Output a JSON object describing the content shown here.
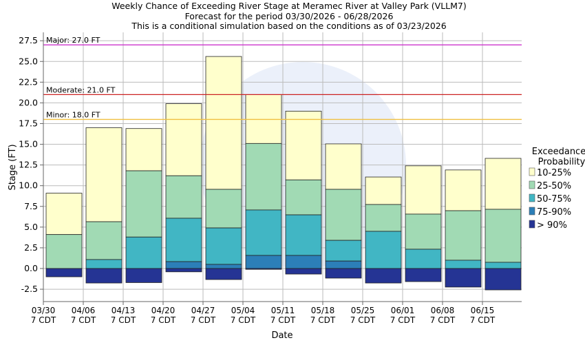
{
  "chart_data": {
    "type": "bar",
    "title": [
      "Weekly Chance of Exceeding River Stage at Meramec River at Valley Park (VLLM7)",
      "Forecast for the period 03/30/2026 - 06/28/2026",
      "This is a conditional simulation based on the conditions as of 03/23/2026"
    ],
    "xlabel": "Date",
    "ylabel": "Stage (FT)",
    "ylim": [
      -3.5,
      28.5
    ],
    "yticks": [
      "-2.5",
      "0.0",
      "2.5",
      "5.0",
      "7.5",
      "10.0",
      "12.5",
      "15.0",
      "17.5",
      "20.0",
      "22.5",
      "25.0",
      "27.5"
    ],
    "xticks": [
      [
        "03/30",
        "7 CDT"
      ],
      [
        "04/06",
        "7 CDT"
      ],
      [
        "04/13",
        "7 CDT"
      ],
      [
        "04/20",
        "7 CDT"
      ],
      [
        "04/27",
        "7 CDT"
      ],
      [
        "05/04",
        "7 CDT"
      ],
      [
        "05/11",
        "7 CDT"
      ],
      [
        "05/18",
        "7 CDT"
      ],
      [
        "05/25",
        "7 CDT"
      ],
      [
        "06/01",
        "7 CDT"
      ],
      [
        "06/08",
        "7 CDT"
      ],
      [
        "06/15",
        "7 CDT"
      ]
    ],
    "grid": true,
    "thresholds": [
      {
        "label": "Major: 27.0 FT",
        "value": 27.0,
        "color": "#cc33cc"
      },
      {
        "label": "Moderate: 21.0 FT",
        "value": 21.0,
        "color": "#cc2222"
      },
      {
        "label": "Minor: 18.0 FT",
        "value": 18.0,
        "color": "#f0c040"
      }
    ],
    "legend": {
      "title": [
        "Exceedance",
        "Probability"
      ],
      "placement": "right"
    },
    "series": [
      {
        "name": "10-25%",
        "color": "#ffffcc",
        "values": [
          [
            4.1,
            9.1
          ],
          [
            5.65,
            17.0
          ],
          [
            11.8,
            16.9
          ],
          [
            11.2,
            19.9
          ],
          [
            9.56,
            25.6
          ],
          [
            15.1,
            21.0
          ],
          [
            10.7,
            19.0
          ],
          [
            9.56,
            15.05
          ],
          [
            7.73,
            11.05
          ],
          [
            6.57,
            12.4
          ],
          [
            6.98,
            11.9
          ],
          [
            7.15,
            13.3
          ]
        ]
      },
      {
        "name": "25-50%",
        "color": "#a1dab4",
        "values": [
          [
            0,
            4.1
          ],
          [
            1.08,
            5.65
          ],
          [
            3.8,
            11.8
          ],
          [
            6.07,
            11.2
          ],
          [
            4.9,
            9.56
          ],
          [
            7.07,
            15.1
          ],
          [
            6.48,
            10.7
          ],
          [
            3.4,
            9.56
          ],
          [
            4.49,
            7.73
          ],
          [
            2.33,
            6.57
          ],
          [
            1.0,
            6.98
          ],
          [
            0.75,
            7.15
          ]
        ]
      },
      {
        "name": "50-75%",
        "color": "#41b6c4",
        "values": [
          [
            0,
            0
          ],
          [
            0,
            1.08
          ],
          [
            0,
            3.8
          ],
          [
            0.83,
            6.07
          ],
          [
            0.5,
            4.9
          ],
          [
            1.58,
            7.07
          ],
          [
            1.58,
            6.48
          ],
          [
            0.9,
            3.4
          ],
          [
            0,
            4.49
          ],
          [
            0,
            2.33
          ],
          [
            0,
            1.0
          ],
          [
            0,
            0.75
          ]
        ]
      },
      {
        "name": "75-90%",
        "color": "#2c7fb8",
        "values": [
          [
            0,
            0
          ],
          [
            0,
            0
          ],
          [
            0,
            0
          ],
          [
            0,
            0.83
          ],
          [
            0,
            0.5
          ],
          [
            0,
            1.58
          ],
          [
            0,
            1.58
          ],
          [
            0,
            0.9
          ],
          [
            0,
            0
          ],
          [
            0,
            0
          ],
          [
            0,
            0
          ],
          [
            0,
            0
          ]
        ]
      },
      {
        "name": "> 90%",
        "color": "#253494",
        "values": [
          [
            -1.0,
            0
          ],
          [
            -1.75,
            0
          ],
          [
            -1.7,
            0
          ],
          [
            -0.4,
            0
          ],
          [
            -1.33,
            0
          ],
          [
            -0.1,
            0
          ],
          [
            -0.67,
            0
          ],
          [
            -1.16,
            0
          ],
          [
            -1.75,
            0
          ],
          [
            -1.58,
            0
          ],
          [
            -2.24,
            0
          ],
          [
            -2.58,
            0
          ]
        ]
      }
    ]
  }
}
